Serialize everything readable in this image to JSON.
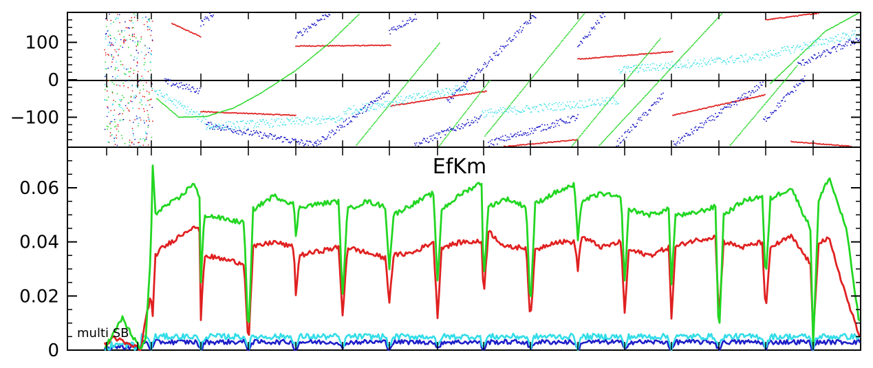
{
  "chart_data": [
    {
      "type": "scatter",
      "title": "",
      "xlabel": "",
      "ylabel": "",
      "ylim": [
        -180,
        180
      ],
      "y_ticks": [
        -100,
        0,
        100
      ],
      "y_tick_labels": [
        "−100",
        "0",
        "100"
      ],
      "grid": false,
      "colors": {
        "red": "#e02020",
        "green": "#22d622",
        "blue": "#1e1ec8",
        "cyan": "#33dde8"
      },
      "series": [
        {
          "color": "red",
          "segments": [
            {
              "x": [
                250,
                292
              ],
              "y": [
                150,
                115
              ]
            },
            {
              "x": [
                292,
                430
              ],
              "y": [
                -85,
                -95
              ]
            },
            {
              "x": [
                430,
                568
              ],
              "y": [
                90,
                92
              ]
            },
            {
              "x": [
                568,
                708
              ],
              "y": [
                -70,
                -30
              ]
            },
            {
              "x": [
                733,
                840
              ],
              "y": [
                -178,
                -160
              ]
            },
            {
              "x": [
                840,
                978
              ],
              "y": [
                55,
                75
              ]
            },
            {
              "x": [
                978,
                1113
              ],
              "y": [
                -95,
                -40
              ]
            },
            {
              "x": [
                1113,
                1190
              ],
              "y": [
                160,
                178
              ]
            },
            {
              "x": [
                1150,
                1240
              ],
              "y": [
                -165,
                -178
              ]
            }
          ]
        },
        {
          "color": "green",
          "segments": [
            {
              "x": [
                228,
                260,
                300,
                340,
                380,
                430,
                480,
                522
              ],
              "y": [
                -50,
                -100,
                -98,
                -75,
                -35,
                25,
                100,
                175
              ]
            },
            {
              "x": [
                518,
                640
              ],
              "y": [
                -175,
                100
              ]
            },
            {
              "x": [
                638,
                713
              ],
              "y": [
                -178,
                0
              ]
            },
            {
              "x": [
                705,
                850
              ],
              "y": [
                -150,
                178
              ]
            },
            {
              "x": [
                830,
                960
              ],
              "y": [
                -180,
                110
              ]
            },
            {
              "x": [
                870,
                1050
              ],
              "y": [
                -178,
                178
              ]
            },
            {
              "x": [
                1060,
                1160
              ],
              "y": [
                -178,
                40
              ]
            },
            {
              "x": [
                1120,
                1200,
                1248
              ],
              "y": [
                -10,
                130,
                178
              ]
            }
          ]
        },
        {
          "color": "blue",
          "segments": [
            {
              "x": [
                240,
                292
              ],
              "y": [
                -5,
                -30
              ]
            },
            {
              "x": [
                292,
                312
              ],
              "y": [
                150,
                180
              ]
            },
            {
              "x": [
                300,
                460
              ],
              "y": [
                -120,
                -175
              ]
            },
            {
              "x": [
                430,
                480
              ],
              "y": [
                115,
                180
              ]
            },
            {
              "x": [
                458,
                566
              ],
              "y": [
                -175,
                -30
              ]
            },
            {
              "x": [
                566,
                606
              ],
              "y": [
                130,
                170
              ]
            },
            {
              "x": [
                603,
                700
              ],
              "y": [
                -175,
                -100
              ]
            },
            {
              "x": [
                650,
                780
              ],
              "y": [
                -60,
                175
              ]
            },
            {
              "x": [
                710,
                840
              ],
              "y": [
                -170,
                -100
              ]
            },
            {
              "x": [
                840,
                880
              ],
              "y": [
                85,
                180
              ]
            },
            {
              "x": [
                895,
                965
              ],
              "y": [
                -175,
                -40
              ]
            },
            {
              "x": [
                975,
                1110
              ],
              "y": [
                -178,
                -10
              ]
            },
            {
              "x": [
                1110,
                1170
              ],
              "y": [
                -110,
                5
              ]
            },
            {
              "x": [
                1160,
                1250
              ],
              "y": [
                40,
                110
              ]
            }
          ]
        },
        {
          "color": "cyan",
          "segments": [
            {
              "x": [
                225,
                300
              ],
              "y": [
                -30,
                -110
              ]
            },
            {
              "x": [
                300,
                500
              ],
              "y": [
                -125,
                -105
              ]
            },
            {
              "x": [
                500,
                680
              ],
              "y": [
                -85,
                -20
              ]
            },
            {
              "x": [
                700,
                900
              ],
              "y": [
                -90,
                -55
              ]
            },
            {
              "x": [
                900,
                1100
              ],
              "y": [
                25,
                60
              ]
            },
            {
              "x": [
                1100,
                1250
              ],
              "y": [
                60,
                125
              ]
            }
          ]
        }
      ]
    },
    {
      "type": "line",
      "title": "EfKm",
      "annotation": "multi SB",
      "xlabel": "",
      "ylabel": "",
      "ylim": [
        0,
        0.075
      ],
      "y_ticks": [
        0,
        0.02,
        0.04,
        0.06
      ],
      "y_tick_labels": [
        "0",
        "0.02",
        "0.04",
        "0.06"
      ],
      "grid": false,
      "dips": [
        220,
        292,
        361,
        430,
        498,
        566,
        636,
        703,
        771,
        840,
        908,
        976,
        1045,
        1113,
        1182
      ],
      "series": [
        {
          "color": "green",
          "anchors": {
            "x": [
              155,
              165,
              178,
              186,
              200,
              205,
              212,
              219,
              222,
              226,
              232,
              260,
              282,
              290,
              292,
              297,
              355,
              361,
              368,
              398,
              427,
              430,
              435,
              492,
              498,
              505,
              533,
              560,
              566,
              572,
              600,
              630,
              636,
              642,
              672,
              700,
              703,
              710,
              735,
              765,
              771,
              778,
              805,
              835,
              840,
              845,
              875,
              903,
              908,
              914,
              945,
              972,
              976,
              982,
              1000,
              1040,
              1045,
              1052,
              1080,
              1108,
              1113,
              1120,
              1150,
              1178,
              1182,
              1190,
              1205,
              1230,
              1249
            ],
            "y": [
              0.002,
              0.006,
              0.012,
              0.008,
              0.002,
              0.0,
              0.005,
              0.035,
              0.068,
              0.05,
              0.052,
              0.056,
              0.062,
              0.056,
              0.025,
              0.05,
              0.047,
              0.003,
              0.052,
              0.057,
              0.054,
              0.042,
              0.053,
              0.055,
              0.02,
              0.052,
              0.055,
              0.053,
              0.03,
              0.05,
              0.054,
              0.058,
              0.025,
              0.052,
              0.058,
              0.062,
              0.025,
              0.053,
              0.056,
              0.053,
              0.015,
              0.054,
              0.058,
              0.061,
              0.04,
              0.055,
              0.058,
              0.056,
              0.025,
              0.052,
              0.05,
              0.052,
              0.025,
              0.05,
              0.05,
              0.053,
              0.003,
              0.05,
              0.055,
              0.057,
              0.025,
              0.056,
              0.06,
              0.045,
              0.002,
              0.055,
              0.064,
              0.045,
              0.01
            ]
          }
        },
        {
          "color": "red",
          "anchors": {
            "x": [
              155,
              165,
              178,
              186,
              200,
              205,
              212,
              219,
              222,
              226,
              232,
              260,
              282,
              290,
              292,
              297,
              355,
              361,
              368,
              398,
              427,
              430,
              435,
              492,
              498,
              505,
              533,
              560,
              566,
              572,
              600,
              630,
              636,
              642,
              672,
              700,
              703,
              710,
              735,
              765,
              771,
              778,
              805,
              835,
              840,
              845,
              875,
              903,
              908,
              914,
              945,
              972,
              976,
              982,
              1000,
              1040,
              1045,
              1052,
              1080,
              1108,
              1113,
              1120,
              1150,
              1178,
              1182,
              1190,
              1205,
              1230,
              1249
            ],
            "y": [
              0.002,
              0.005,
              0.003,
              0.002,
              0.001,
              0.0,
              0.012,
              0.02,
              0.012,
              0.035,
              0.037,
              0.042,
              0.046,
              0.044,
              0.011,
              0.035,
              0.032,
              0.001,
              0.038,
              0.04,
              0.038,
              0.02,
              0.035,
              0.038,
              0.013,
              0.038,
              0.036,
              0.034,
              0.018,
              0.035,
              0.036,
              0.04,
              0.012,
              0.038,
              0.04,
              0.04,
              0.02,
              0.044,
              0.038,
              0.038,
              0.01,
              0.037,
              0.04,
              0.04,
              0.03,
              0.042,
              0.038,
              0.04,
              0.013,
              0.037,
              0.035,
              0.038,
              0.012,
              0.038,
              0.04,
              0.042,
              0.012,
              0.04,
              0.038,
              0.04,
              0.013,
              0.038,
              0.042,
              0.032,
              0.005,
              0.04,
              0.041,
              0.02,
              0.005
            ]
          }
        },
        {
          "color": "cyan",
          "level": 0.005,
          "dip_level": 0.001
        },
        {
          "color": "blue",
          "level": 0.003,
          "dip_level": 0.0
        }
      ]
    }
  ]
}
